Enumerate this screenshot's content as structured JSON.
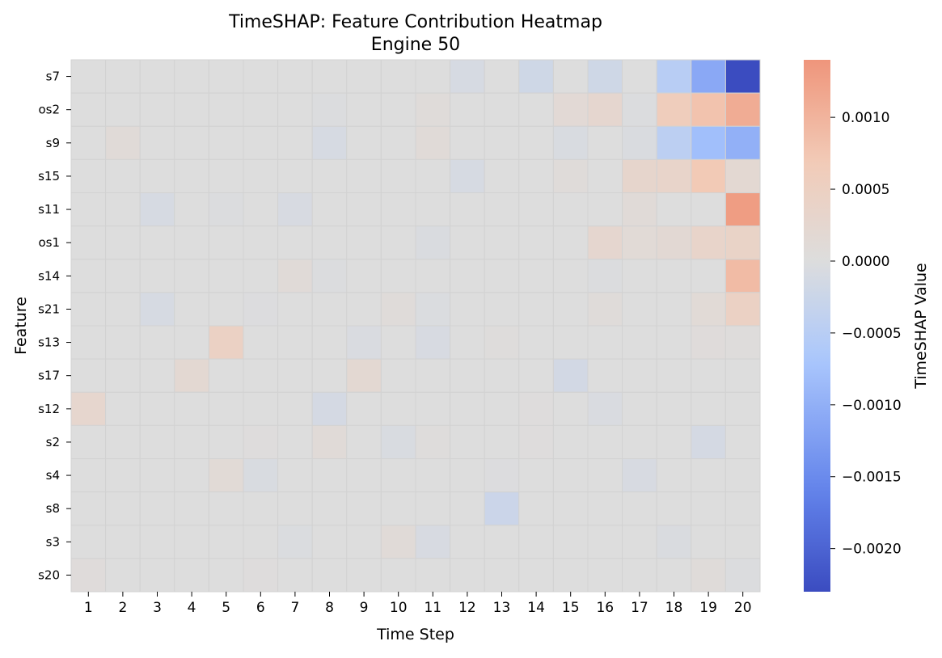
{
  "chart_data": {
    "type": "heatmap",
    "title": "TimeSHAP: Feature Contribution Heatmap",
    "subtitle": "Engine 50",
    "xlabel": "Time Step",
    "ylabel": "Feature",
    "colorbar_label": "TimeSHAP Value",
    "colormap": "coolwarm",
    "vmin": -0.0023,
    "vmax": 0.0014,
    "colorbar_ticks": [
      {
        "value": 0.001,
        "label": "0.0010"
      },
      {
        "value": 0.0005,
        "label": "0.0005"
      },
      {
        "value": 0.0,
        "label": "0.0000"
      },
      {
        "value": -0.0005,
        "label": "−0.0005"
      },
      {
        "value": -0.001,
        "label": "−0.0010"
      },
      {
        "value": -0.0015,
        "label": "−0.0015"
      },
      {
        "value": -0.002,
        "label": "−0.0020"
      }
    ],
    "x_categories": [
      "1",
      "2",
      "3",
      "4",
      "5",
      "6",
      "7",
      "8",
      "9",
      "10",
      "11",
      "12",
      "13",
      "14",
      "15",
      "16",
      "17",
      "18",
      "19",
      "20"
    ],
    "y_categories": [
      "s7",
      "os2",
      "s9",
      "s15",
      "s11",
      "os1",
      "s14",
      "s21",
      "s13",
      "s17",
      "s12",
      "s2",
      "s4",
      "s8",
      "s3",
      "s20"
    ],
    "values": [
      [
        0,
        0,
        0,
        0,
        0,
        0,
        0,
        0,
        0,
        0,
        0,
        -0.0001,
        0,
        -0.0002,
        0,
        -0.0002,
        0,
        -0.0005,
        -0.0011,
        -0.0023
      ],
      [
        0,
        0,
        0,
        0,
        0,
        0,
        0,
        -3e-05,
        0,
        0,
        8e-05,
        0,
        0,
        0,
        0.00015,
        0.00025,
        -3e-05,
        0.0006,
        0.0008,
        0.0011
      ],
      [
        0,
        0.0001,
        0,
        0,
        0,
        0,
        0,
        -0.0001,
        0,
        0,
        0.0001,
        0,
        0,
        0,
        -7e-05,
        0,
        -5e-05,
        -0.00045,
        -0.0008,
        -0.001
      ],
      [
        0,
        0,
        0,
        0,
        0,
        0,
        0,
        0,
        0,
        0,
        0,
        -0.0001,
        0,
        0,
        8e-05,
        0,
        0.0003,
        0.00035,
        0.0007,
        0.0002
      ],
      [
        0,
        0,
        -0.0001,
        0,
        -3e-05,
        0,
        -8e-05,
        0,
        0,
        0,
        0,
        0,
        0,
        0,
        0,
        0,
        0.0001,
        0,
        0,
        0.0013
      ],
      [
        0,
        0,
        0,
        0,
        0,
        0,
        0,
        0,
        0,
        0,
        -5e-05,
        0,
        0,
        0,
        0,
        0.00025,
        0.00012,
        0.00018,
        0.00035,
        0.0004
      ],
      [
        0,
        0,
        0,
        0,
        0,
        0,
        0.0001,
        -3e-05,
        0,
        0,
        0,
        0,
        0,
        0,
        0,
        -3e-05,
        0,
        0,
        0,
        0.0009
      ],
      [
        0,
        0,
        -0.0001,
        0,
        0,
        -2e-05,
        0,
        0,
        0,
        8e-05,
        -4e-05,
        0,
        0,
        0,
        0,
        8e-05,
        0,
        0,
        0.00012,
        0.00045
      ],
      [
        0,
        0,
        0,
        0,
        0.00045,
        0,
        0,
        0,
        -6e-05,
        0,
        -8e-05,
        0,
        3e-05,
        0,
        0,
        0,
        0,
        0,
        6e-05,
        4e-05
      ],
      [
        0,
        0,
        0,
        0.0002,
        0,
        0,
        0,
        0,
        0.0002,
        0,
        0,
        0,
        0,
        0,
        -0.00015,
        0,
        0,
        0,
        0,
        0
      ],
      [
        0.00028,
        0,
        0,
        0,
        0,
        0,
        0,
        -0.00012,
        0,
        0,
        0,
        0,
        0,
        2e-05,
        0,
        -6e-05,
        0,
        0,
        0,
        0
      ],
      [
        0,
        0,
        0,
        0,
        0,
        2e-05,
        0,
        0.0001,
        0,
        -7e-05,
        3e-05,
        0,
        0,
        2e-05,
        0,
        0,
        0,
        0,
        -0.00012,
        0
      ],
      [
        0,
        0,
        0,
        0,
        0.00012,
        -7e-05,
        0,
        0,
        0,
        0,
        0,
        0,
        -2e-05,
        0,
        0,
        0,
        -8e-05,
        0,
        0,
        0
      ],
      [
        0,
        0,
        0,
        0,
        0,
        0,
        0,
        0,
        0,
        0,
        0,
        0,
        -0.00025,
        0,
        0,
        0,
        0,
        0,
        0,
        0
      ],
      [
        0,
        0,
        0,
        0,
        0,
        0,
        -4e-05,
        0,
        0,
        0.0001,
        -8e-05,
        0,
        0,
        0,
        0,
        0,
        0,
        -5e-05,
        0,
        0
      ],
      [
        6e-05,
        0,
        0,
        0,
        0,
        2e-05,
        0,
        0,
        0,
        0,
        0,
        0,
        0,
        0,
        0,
        0,
        0,
        0,
        7e-05,
        -3e-05
      ]
    ]
  }
}
